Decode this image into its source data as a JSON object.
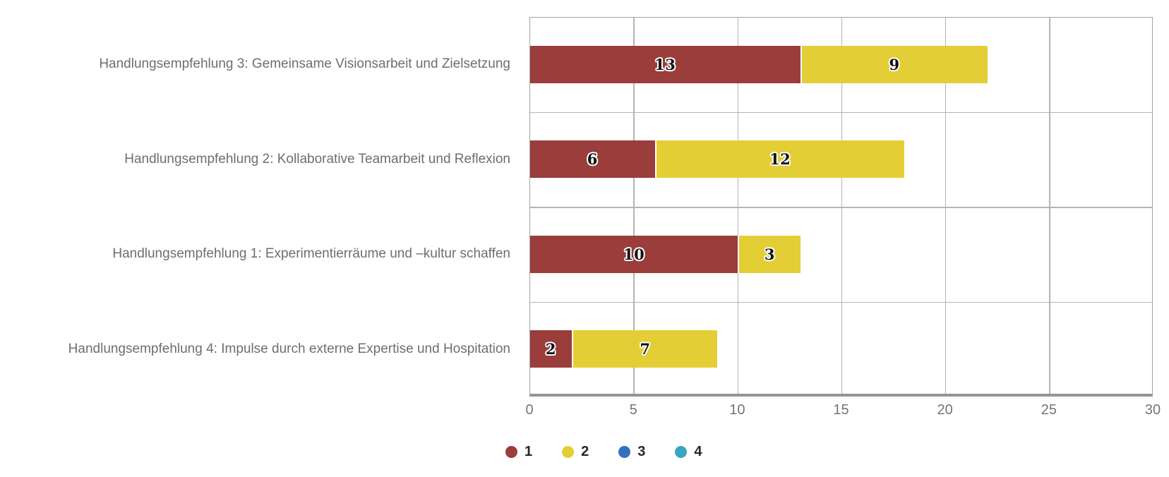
{
  "chart_data": {
    "type": "bar",
    "orientation": "horizontal",
    "stacked": true,
    "categories": [
      "Handlungsempfehlung 3: Gemeinsame Visionsarbeit und Zielsetzung",
      "Handlungsempfehlung 2: Kollaborative Teamarbeit und Reflexion",
      "Handlungsempfehlung 1: Experimentierräume und –kultur schaffen",
      "Handlungsempfehlung 4: Impulse durch externe Expertise und Hospitation"
    ],
    "series": [
      {
        "name": "1",
        "color": "#9a3d3b",
        "values": [
          13,
          6,
          10,
          2
        ]
      },
      {
        "name": "2",
        "color": "#e4ce35",
        "values": [
          9,
          12,
          3,
          7
        ]
      },
      {
        "name": "3",
        "color": "#3371be",
        "values": [
          0,
          0,
          0,
          0
        ]
      },
      {
        "name": "4",
        "color": "#39a5bf",
        "values": [
          0,
          0,
          0,
          0
        ]
      }
    ],
    "xlim": [
      0,
      30
    ],
    "x_ticks": [
      "0",
      "5",
      "10",
      "15",
      "20",
      "25",
      "30"
    ],
    "grid": true,
    "legend_position": "bottom",
    "bar_value_labels": true,
    "colors": {
      "grid": "#b4b4b4",
      "plot_border": "#a4a4a4",
      "axis_bottom": "#949494",
      "category_label": "#6e6e6e",
      "tick_label": "#757575",
      "value_label": "#111111",
      "legend_label": "#262626",
      "background": "#ffffff"
    }
  }
}
